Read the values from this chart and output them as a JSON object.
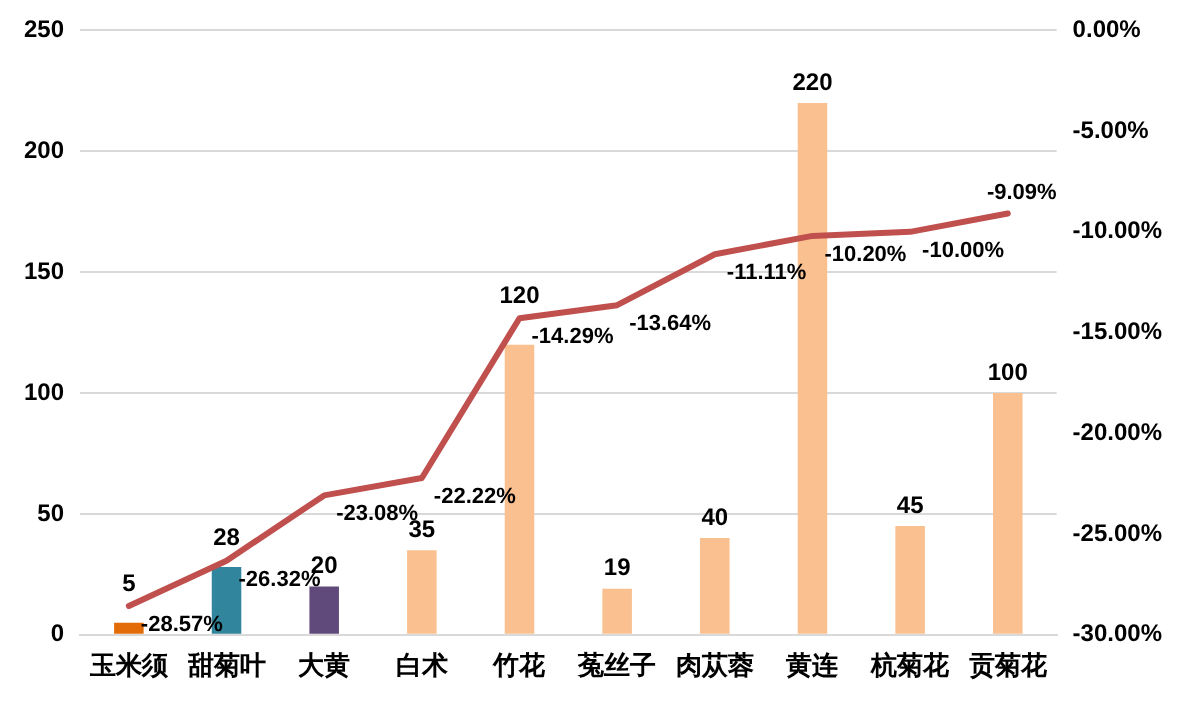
{
  "chart_data": {
    "type": "bar",
    "categories": [
      "玉米须",
      "甜菊叶",
      "大黄",
      "白术",
      "竹花",
      "菟丝子",
      "肉苁蓉",
      "黄连",
      "杭菊花",
      "贡菊花"
    ],
    "series": [
      {
        "colors": [
          "#e36c09",
          "#31859c",
          "#604a7b",
          "#fac090",
          "#fac090",
          "#fac090",
          "#fac090",
          "#fac090",
          "#fac090",
          "#fac090"
        ],
        "values": [
          5,
          28,
          20,
          35,
          120,
          19,
          40,
          220,
          45,
          100
        ],
        "value_labels": [
          "5",
          "28",
          "20",
          "35",
          "120",
          "19",
          "40",
          "220",
          "45",
          "100"
        ]
      },
      {
        "type": "line",
        "axis": "y2",
        "color": "#c0504d",
        "values": [
          -28.57,
          -26.32,
          -23.08,
          -22.22,
          -14.29,
          -13.64,
          -11.11,
          -10.2,
          -10.0,
          -9.09
        ],
        "value_labels": [
          "-28.57%",
          "-26.32%",
          "-23.08%",
          "-22.22%",
          "-14.29%",
          "-13.64%",
          "-11.11%",
          "-10.20%",
          "-10.00%",
          "-9.09%"
        ]
      }
    ],
    "ylim": [
      0,
      250
    ],
    "yticks": [
      0,
      50,
      100,
      150,
      200,
      250
    ],
    "y2lim": [
      -30,
      0
    ],
    "y2ticks": [
      {
        "value": -30,
        "label": "-30.00%"
      },
      {
        "value": -25,
        "label": "-25.00%"
      },
      {
        "value": -20,
        "label": "-20.00%"
      },
      {
        "value": -15,
        "label": "-15.00%"
      },
      {
        "value": -10,
        "label": "-10.00%"
      },
      {
        "value": -5,
        "label": "-5.00%"
      },
      {
        "value": 0,
        "label": "0.00%"
      }
    ],
    "grid": "y",
    "legend": false,
    "marker": "none",
    "line_style": "solid"
  }
}
